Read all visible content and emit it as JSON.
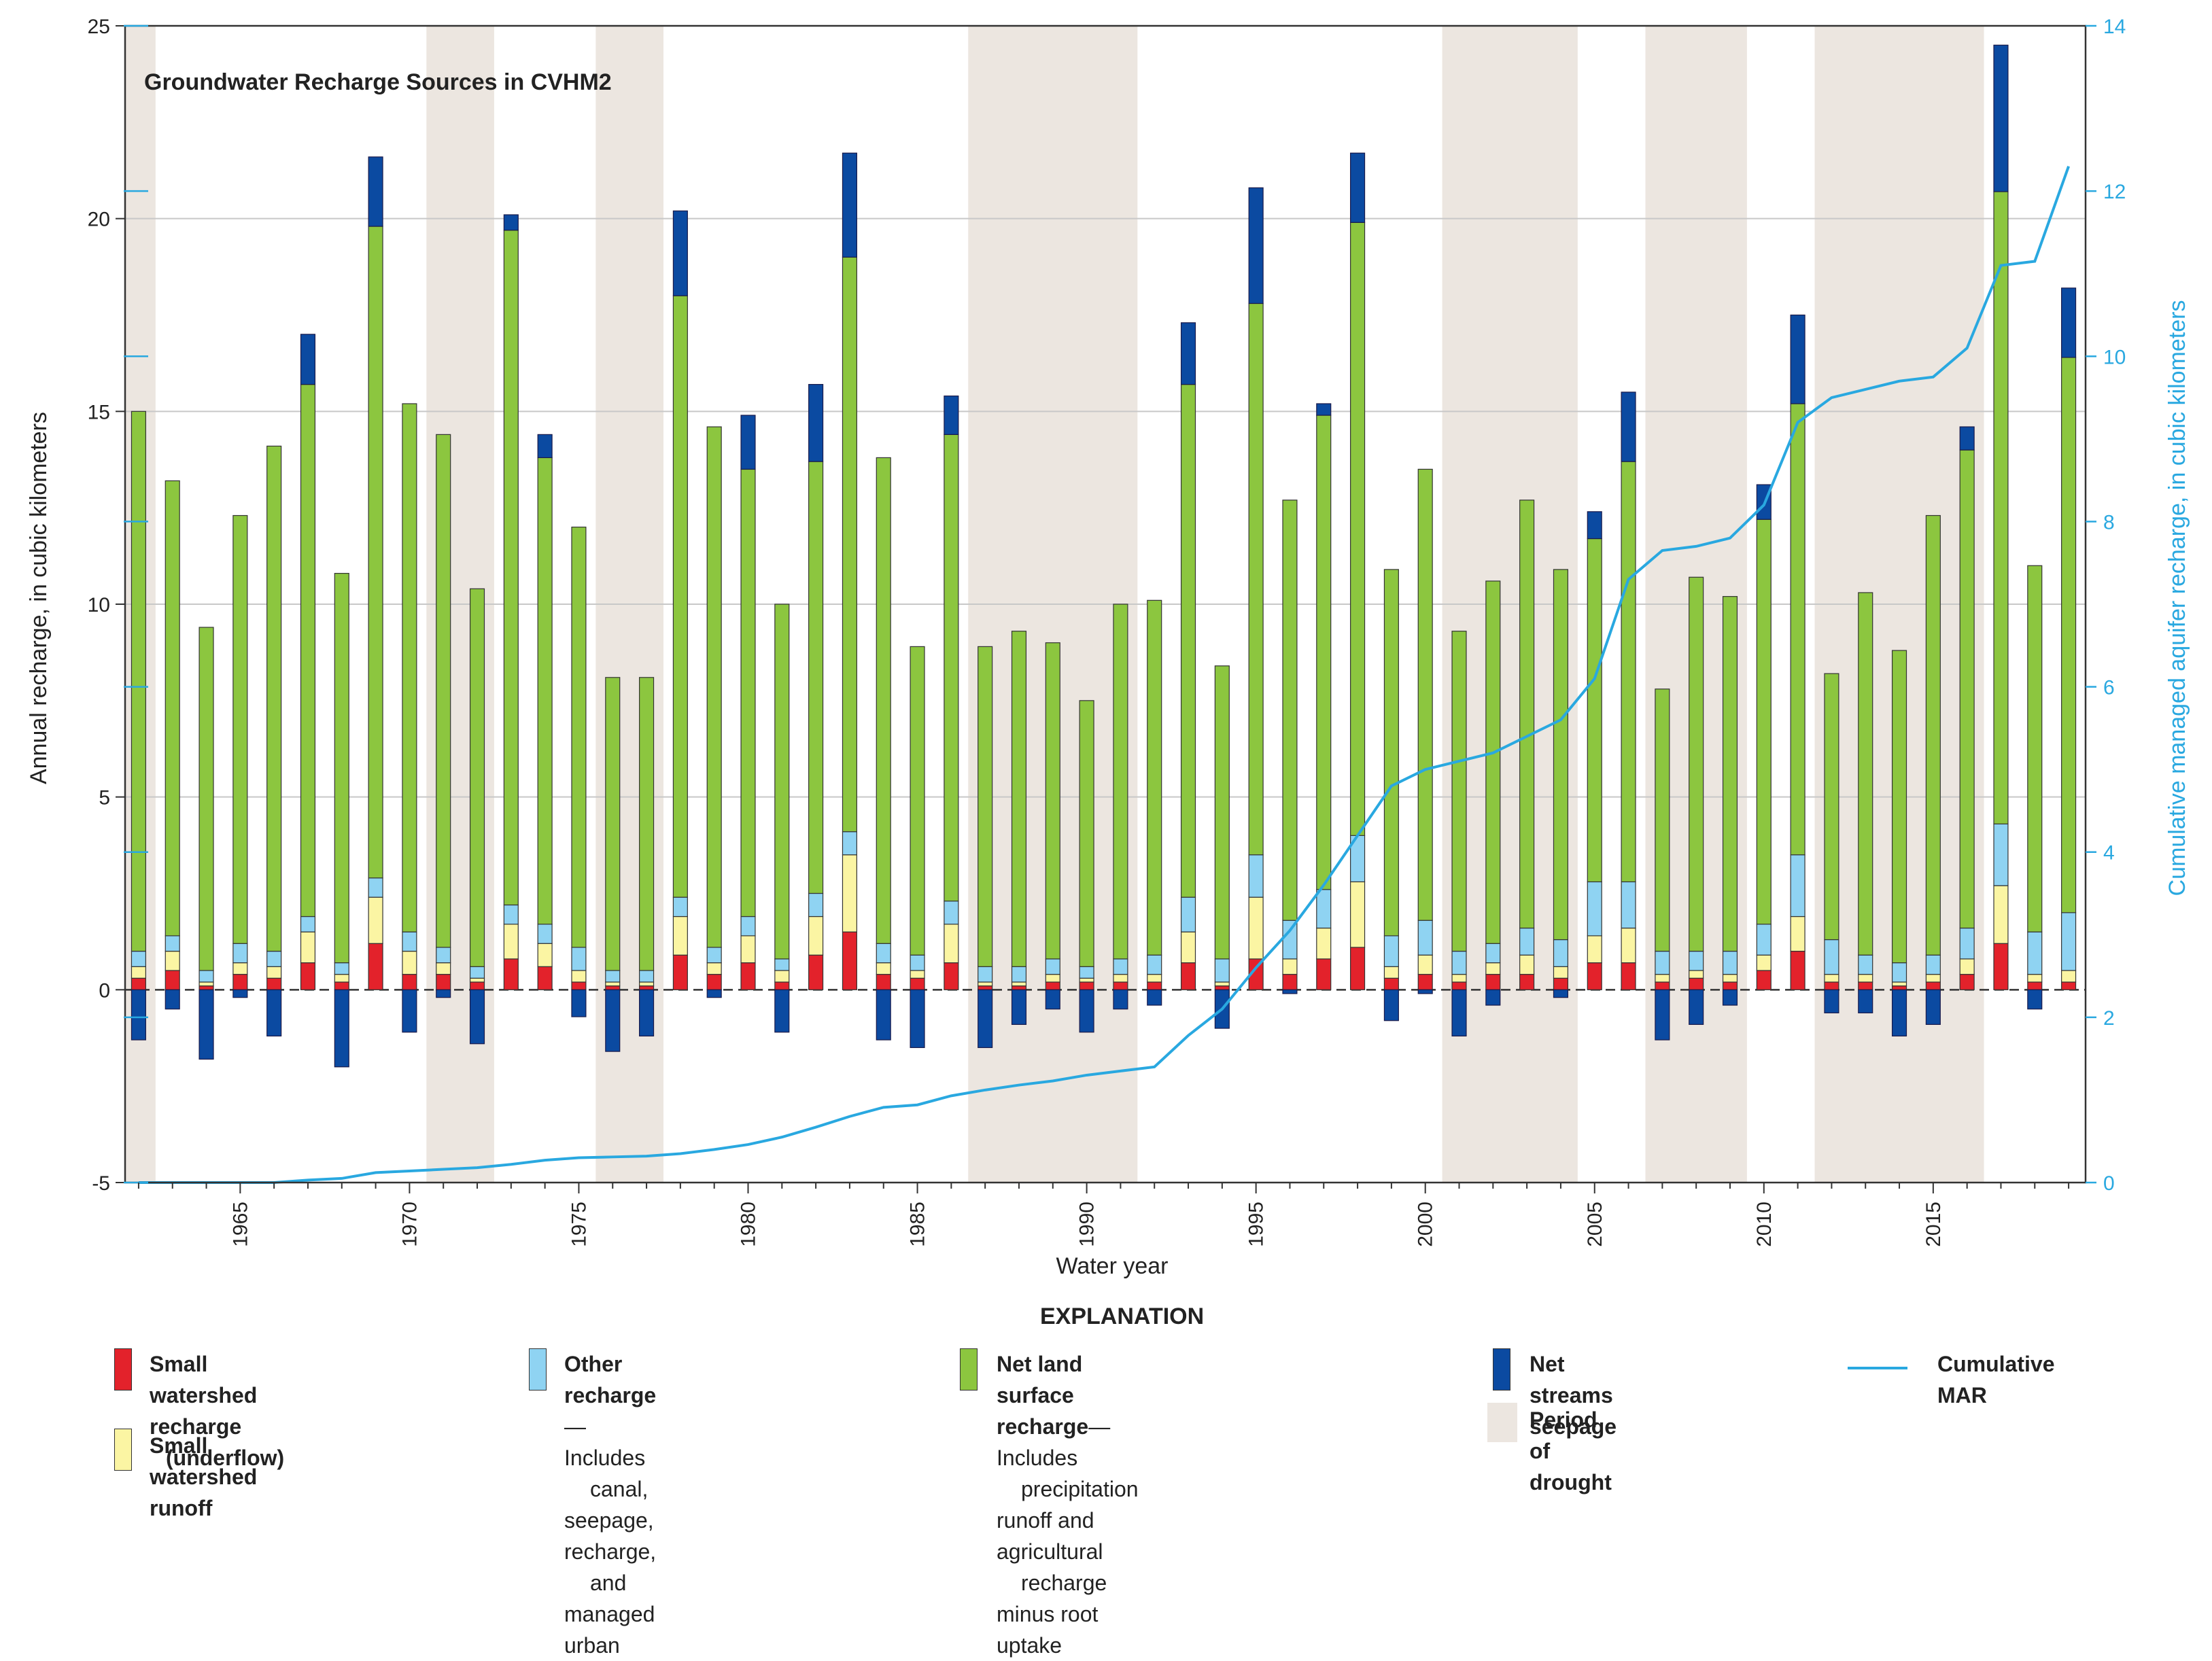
{
  "chart_data": {
    "type": "stacked-bar+line",
    "title": "Groundwater Recharge Sources in CVHM2",
    "xlabel": "Water year",
    "ylabel_left": "Annual recharge, in cubic kilometers",
    "ylabel_right": "Cumulative managed aquifer recharge, in cubic kilometers",
    "ylim_left": [
      -5,
      25
    ],
    "ylim_right": [
      0,
      14
    ],
    "left_ticks": [
      -5,
      0,
      5,
      10,
      15,
      20,
      25
    ],
    "right_ticks": [
      0,
      2,
      4,
      6,
      8,
      10,
      12,
      14
    ],
    "x_ticks": [
      1965,
      1970,
      1975,
      1980,
      1985,
      1990,
      1995,
      2000,
      2005,
      2010,
      2015
    ],
    "grid": true,
    "years": [
      1962,
      1963,
      1964,
      1965,
      1966,
      1967,
      1968,
      1969,
      1970,
      1971,
      1972,
      1973,
      1974,
      1975,
      1976,
      1977,
      1978,
      1979,
      1980,
      1981,
      1982,
      1983,
      1984,
      1985,
      1986,
      1987,
      1988,
      1989,
      1990,
      1991,
      1992,
      1993,
      1994,
      1995,
      1996,
      1997,
      1998,
      1999,
      2000,
      2001,
      2002,
      2003,
      2004,
      2005,
      2006,
      2007,
      2008,
      2009,
      2010,
      2011,
      2012,
      2013,
      2014,
      2015,
      2016,
      2017,
      2018,
      2019
    ],
    "series": [
      {
        "name": "Small watershed recharge (underflow)",
        "color": "#e3222b",
        "values": [
          0.3,
          0.5,
          0.1,
          0.4,
          0.3,
          0.7,
          0.2,
          1.2,
          0.4,
          0.4,
          0.2,
          0.8,
          0.6,
          0.2,
          0.1,
          0.1,
          0.9,
          0.4,
          0.7,
          0.2,
          0.9,
          1.5,
          0.4,
          0.3,
          0.7,
          0.1,
          0.1,
          0.2,
          0.2,
          0.2,
          0.2,
          0.7,
          0.1,
          0.8,
          0.4,
          0.8,
          1.1,
          0.3,
          0.4,
          0.2,
          0.4,
          0.4,
          0.3,
          0.7,
          0.7,
          0.2,
          0.3,
          0.2,
          0.5,
          1.0,
          0.2,
          0.2,
          0.1,
          0.2,
          0.4,
          1.2,
          0.2,
          0.2
        ]
      },
      {
        "name": "Small watershed runoff",
        "color": "#fbf5a3",
        "values": [
          0.3,
          0.5,
          0.1,
          0.3,
          0.3,
          0.8,
          0.2,
          1.2,
          0.6,
          0.3,
          0.1,
          0.9,
          0.6,
          0.3,
          0.1,
          0.1,
          1.0,
          0.3,
          0.7,
          0.3,
          1.0,
          2.0,
          0.3,
          0.2,
          1.0,
          0.1,
          0.1,
          0.2,
          0.1,
          0.2,
          0.2,
          0.8,
          0.1,
          1.6,
          0.4,
          0.8,
          1.7,
          0.3,
          0.5,
          0.2,
          0.3,
          0.5,
          0.3,
          0.7,
          0.9,
          0.2,
          0.2,
          0.2,
          0.4,
          0.9,
          0.2,
          0.2,
          0.1,
          0.2,
          0.4,
          1.5,
          0.2,
          0.3
        ]
      },
      {
        "name": "Other recharge",
        "color": "#8fd3f2",
        "values": [
          0.4,
          0.4,
          0.3,
          0.5,
          0.4,
          0.4,
          0.3,
          0.5,
          0.5,
          0.4,
          0.3,
          0.5,
          0.5,
          0.6,
          0.3,
          0.3,
          0.5,
          0.4,
          0.5,
          0.3,
          0.6,
          0.6,
          0.5,
          0.4,
          0.6,
          0.4,
          0.4,
          0.4,
          0.3,
          0.4,
          0.5,
          0.9,
          0.6,
          1.1,
          1.0,
          1.0,
          1.2,
          0.8,
          0.9,
          0.6,
          0.5,
          0.7,
          0.7,
          1.4,
          1.2,
          0.6,
          0.5,
          0.6,
          0.8,
          1.6,
          0.9,
          0.5,
          0.5,
          0.5,
          0.8,
          1.6,
          1.1,
          1.5
        ]
      },
      {
        "name": "Net land surface recharge",
        "color": "#8cc63f",
        "values": [
          14.0,
          11.8,
          8.9,
          11.1,
          13.1,
          13.8,
          10.1,
          16.9,
          13.7,
          13.3,
          9.8,
          17.5,
          12.1,
          10.9,
          7.6,
          7.6,
          15.6,
          13.5,
          11.6,
          9.2,
          11.2,
          14.9,
          12.6,
          8.0,
          12.1,
          8.3,
          8.7,
          8.2,
          6.9,
          9.2,
          9.2,
          13.3,
          7.6,
          14.3,
          10.9,
          12.3,
          15.9,
          9.5,
          11.7,
          8.3,
          9.4,
          11.1,
          9.6,
          8.9,
          10.9,
          6.8,
          9.7,
          9.2,
          10.5,
          11.7,
          6.9,
          9.4,
          8.1,
          11.4,
          12.4,
          16.4,
          9.5,
          14.4
        ]
      },
      {
        "name": "Net streams seepage",
        "color": "#0b4aa1",
        "values": [
          -1.3,
          -0.5,
          -1.8,
          -0.2,
          -1.2,
          1.3,
          -2.0,
          1.8,
          -1.1,
          -0.2,
          -1.4,
          0.4,
          0.6,
          -0.7,
          -1.6,
          -1.2,
          2.2,
          -0.2,
          1.4,
          -1.1,
          2.0,
          2.7,
          -1.3,
          -1.5,
          1.0,
          -1.5,
          -0.9,
          -0.5,
          -1.1,
          -0.5,
          -0.4,
          1.6,
          -1.0,
          3.0,
          -0.1,
          0.3,
          1.8,
          -0.8,
          -0.1,
          -1.2,
          -0.4,
          0.0,
          -0.2,
          0.7,
          1.8,
          -1.3,
          -0.9,
          -0.4,
          0.9,
          2.3,
          -0.6,
          -0.6,
          -1.2,
          -0.9,
          0.6,
          3.8,
          -0.5,
          1.8
        ]
      }
    ],
    "line": {
      "name": "Cumulative MAR",
      "color": "#29a8e0",
      "values": [
        0,
        0,
        0,
        0,
        0,
        0.03,
        0.05,
        0.12,
        0.14,
        0.16,
        0.18,
        0.22,
        0.27,
        0.3,
        0.31,
        0.32,
        0.35,
        0.4,
        0.46,
        0.55,
        0.67,
        0.8,
        0.91,
        0.94,
        1.05,
        1.12,
        1.18,
        1.23,
        1.3,
        1.35,
        1.4,
        1.78,
        2.1,
        2.6,
        3.05,
        3.6,
        4.2,
        4.8,
        5.0,
        5.1,
        5.2,
        5.4,
        5.6,
        6.1,
        7.3,
        7.65,
        7.7,
        7.8,
        8.2,
        9.2,
        9.5,
        9.6,
        9.7,
        9.75,
        10.1,
        11.1,
        11.15,
        12.3
      ]
    },
    "drought_periods": [
      [
        1962,
        1962
      ],
      [
        1971,
        1972
      ],
      [
        1976,
        1977
      ],
      [
        1987,
        1991
      ],
      [
        2001,
        2004
      ],
      [
        2007,
        2009
      ],
      [
        2012,
        2016
      ]
    ]
  },
  "legend": {
    "title": "EXPLANATION",
    "underflow_label": "Small watershed recharge",
    "underflow_sub": "(underflow)",
    "runoff_label": "Small watershed runoff",
    "other_label": "Other recharge",
    "other_desc_1": "—Includes",
    "other_desc_2": "canal, seepage, recharge,",
    "other_desc_3": "and managed urban",
    "land_label": "Net land surface recharge",
    "land_desc_1": "—Includes",
    "land_desc_2": "precipitation runoff and agricultural",
    "land_desc_3": "recharge minus root uptake",
    "streams_label": "Net streams seepage",
    "drought_label": "Period of drought",
    "line_label": "Cumulative MAR",
    "drought_color": "#ece6e0"
  }
}
